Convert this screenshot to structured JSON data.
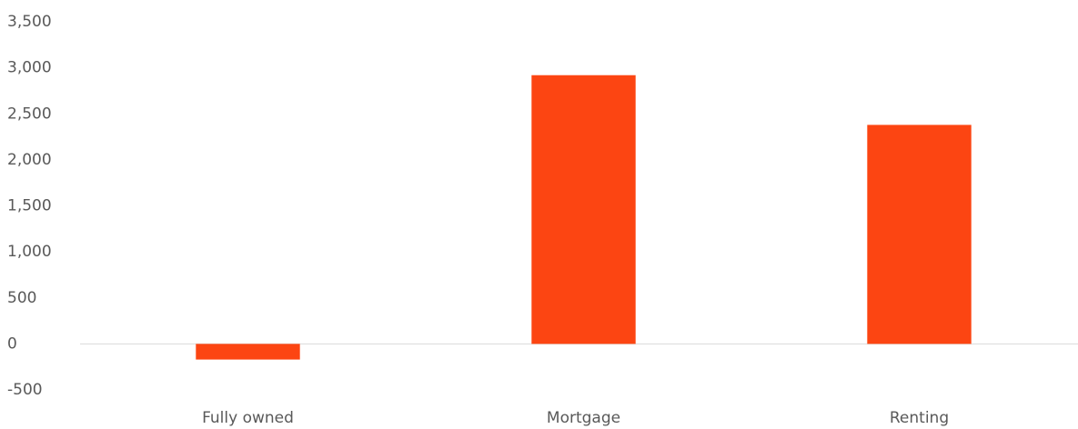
{
  "chart_data": {
    "type": "bar",
    "categories": [
      "Fully owned",
      "Mortgage",
      "Renting"
    ],
    "values": [
      -170,
      2920,
      2380
    ],
    "color": "#fc4512",
    "ylim": [
      -500,
      3500
    ],
    "yticks": [
      -500,
      0,
      500,
      {
        "value": 1000,
        "label": "1,000"
      },
      {
        "value": 1500,
        "label": "1,500"
      },
      {
        "value": 2000,
        "label": "2,000"
      },
      {
        "value": 2500,
        "label": "2,500"
      },
      {
        "value": 3000,
        "label": "3,000"
      },
      {
        "value": 3500,
        "label": "3,500"
      }
    ],
    "grid": false
  }
}
